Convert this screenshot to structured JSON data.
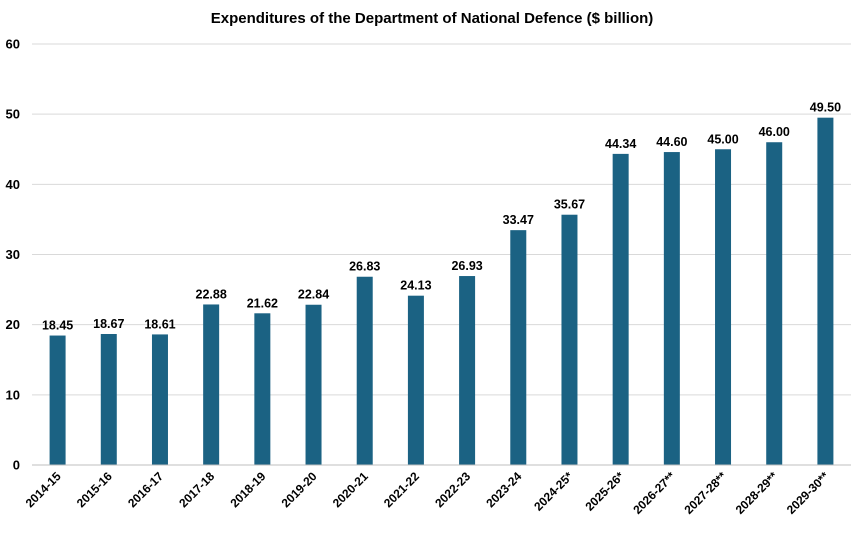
{
  "chart_data": {
    "type": "bar",
    "title": "Expenditures of the Department of National Defence ($ billion)",
    "xlabel": "",
    "ylabel": "",
    "categories": [
      "2014-15",
      "2015-16",
      "2016-17",
      "2017-18",
      "2018-19",
      "2019-20",
      "2020-21",
      "2021-22",
      "2022-23",
      "2023-24",
      "2024-25*",
      "2025-26*",
      "2026-27**",
      "2027-28**",
      "2028-29**",
      "2029-30**"
    ],
    "values": [
      18.45,
      18.67,
      18.61,
      22.88,
      21.62,
      22.84,
      26.83,
      24.13,
      26.93,
      33.47,
      35.67,
      44.34,
      44.6,
      45.0,
      46.0,
      49.5
    ],
    "value_labels": [
      "18.45",
      "18.67",
      "18.61",
      "22.88",
      "21.62",
      "22.84",
      "26.83",
      "24.13",
      "26.93",
      "33.47",
      "35.67",
      "44.34",
      "44.60",
      "45.00",
      "46.00",
      "49.50"
    ],
    "ylim": [
      0,
      60
    ],
    "yticks": [
      "0",
      "10",
      "20",
      "30",
      "40",
      "50",
      "60"
    ],
    "grid": true,
    "legend": "none",
    "bar_color": "#1b6283"
  }
}
